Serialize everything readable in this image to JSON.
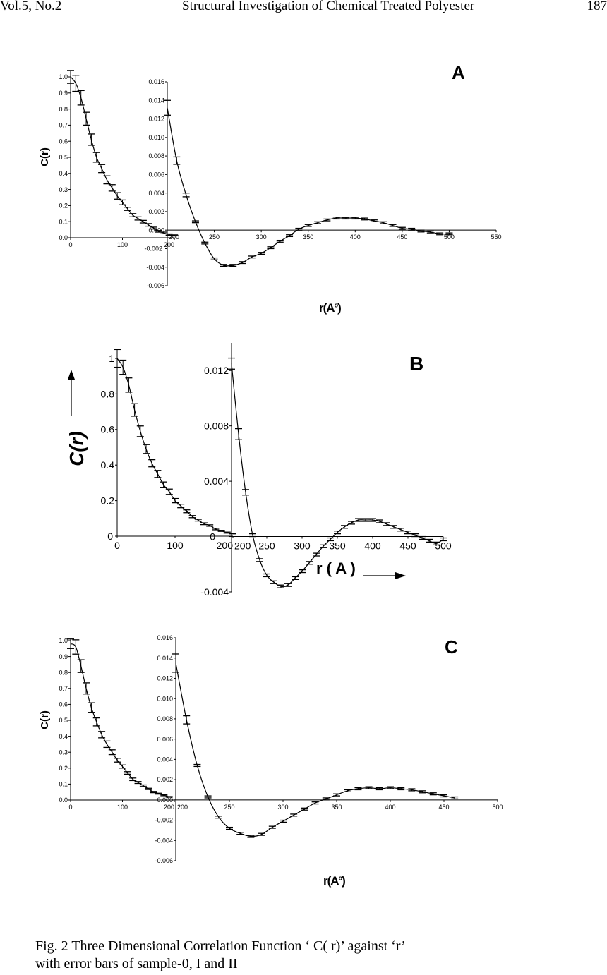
{
  "header": {
    "volume": "Vol.5, No.2",
    "title": "Structural Investigation of Chemical Treated Polyester",
    "page": "187"
  },
  "panels": [
    {
      "label": "A",
      "ylabel": "C(r)",
      "xlabel": "r(A",
      "xlabel_sup": "o",
      "xlabel_close": ")"
    },
    {
      "label": "B",
      "ylabel": "C(r)",
      "xlabel": "r ( A )"
    },
    {
      "label": "C",
      "ylabel": "C(r)",
      "xlabel": "r(A",
      "xlabel_sup": "o",
      "xlabel_close": ")"
    }
  ],
  "caption": {
    "line1": "Fig. 2 Three Dimensional Correlation Function ‘ C( r)’ against ‘r’",
    "line2": "with error bars of sample-0, I and II"
  },
  "chart_data": [
    {
      "type": "line",
      "panel": "A",
      "part": "main",
      "xlim": [
        0,
        200
      ],
      "ylim": [
        0,
        1
      ],
      "xticks": [
        "0",
        "100",
        "200"
      ],
      "xtick_values": [
        0,
        100,
        200
      ],
      "yticks": [
        "0.0",
        "0.1",
        "0.2",
        "0.3",
        "0.4",
        "0.5",
        "0.6",
        "0.7",
        "0.8",
        "0.9",
        "1.0"
      ],
      "ytick_values": [
        0,
        0.1,
        0.2,
        0.3,
        0.4,
        0.5,
        0.6,
        0.7,
        0.8,
        0.9,
        1.0
      ],
      "x": [
        0,
        10,
        20,
        30,
        40,
        50,
        60,
        70,
        80,
        90,
        100,
        110,
        120,
        130,
        140,
        150,
        160,
        170,
        180,
        190,
        200
      ],
      "y": [
        1.0,
        0.96,
        0.87,
        0.74,
        0.61,
        0.5,
        0.43,
        0.36,
        0.31,
        0.26,
        0.22,
        0.18,
        0.14,
        0.12,
        0.1,
        0.08,
        0.06,
        0.04,
        0.03,
        0.02,
        0.015
      ],
      "err": [
        0.04,
        0.05,
        0.045,
        0.04,
        0.035,
        0.03,
        0.025,
        0.025,
        0.02,
        0.02,
        0.015,
        0.01,
        0.01,
        0.01,
        0.008,
        0.008,
        0.006,
        0.005,
        0.005,
        0.004,
        0.003
      ]
    },
    {
      "type": "line",
      "panel": "A",
      "part": "inset",
      "xlim": [
        200,
        550
      ],
      "ylim": [
        -0.006,
        0.016
      ],
      "xticks": [
        "200",
        "250",
        "300",
        "350",
        "400",
        "450",
        "500",
        "550"
      ],
      "xtick_values": [
        200,
        250,
        300,
        350,
        400,
        450,
        500,
        550
      ],
      "yticks": [
        "0.016",
        "0.014",
        "0.012",
        "0.010",
        "0.008",
        "0.006",
        "0.004",
        "0.002",
        "0.000",
        "-0.002",
        "-0.004",
        "-0.006"
      ],
      "ytick_values": [
        0.016,
        0.014,
        0.012,
        0.01,
        0.008,
        0.006,
        0.004,
        0.002,
        0,
        -0.002,
        -0.004,
        -0.006
      ],
      "x": [
        200,
        210,
        220,
        230,
        240,
        250,
        260,
        270,
        280,
        290,
        300,
        310,
        320,
        330,
        340,
        350,
        360,
        370,
        380,
        390,
        400,
        410,
        420,
        430,
        440,
        450,
        460,
        470,
        480,
        490,
        500
      ],
      "y": [
        0.0132,
        0.0075,
        0.0038,
        0.0009,
        -0.0014,
        -0.0031,
        -0.0038,
        -0.0038,
        -0.0035,
        -0.0029,
        -0.0025,
        -0.0019,
        -0.0012,
        -0.0006,
        0.0001,
        0.0005,
        0.0008,
        0.0011,
        0.0013,
        0.0013,
        0.0013,
        0.0012,
        0.001,
        0.0008,
        0.0005,
        0.0002,
        0.0001,
        -0.0001,
        -0.0002,
        -0.0004,
        -0.0004
      ],
      "err": [
        0.0008,
        0.0004,
        0.0002,
        0.0001,
        0.0001,
        0.0001,
        0.0001,
        0.0001,
        0.0001,
        0.0001,
        0.0001,
        0.0001,
        0.0001,
        0.0001,
        0.0001,
        0.0001,
        0.0001,
        0.0001,
        0.0001,
        0.0001,
        0.0001,
        0.0001,
        0.0001,
        0.0001,
        0.0001,
        0.0001,
        0.0001,
        0.0001,
        0.0001,
        0.0001,
        0.0001
      ]
    },
    {
      "type": "line",
      "panel": "B",
      "part": "main",
      "xlim": [
        0,
        200
      ],
      "ylim": [
        0,
        1
      ],
      "xticks": [
        "0",
        "100",
        "200"
      ],
      "xtick_values": [
        0,
        100,
        200
      ],
      "yticks": [
        "0",
        "0.2",
        "0.4",
        "0.6",
        "0.8",
        "1"
      ],
      "ytick_values": [
        0,
        0.2,
        0.4,
        0.6,
        0.8,
        1
      ],
      "x": [
        0,
        10,
        20,
        30,
        40,
        50,
        60,
        70,
        80,
        90,
        100,
        110,
        120,
        130,
        140,
        150,
        160,
        170,
        180,
        190,
        200
      ],
      "y": [
        1.0,
        0.95,
        0.85,
        0.71,
        0.59,
        0.49,
        0.41,
        0.35,
        0.29,
        0.25,
        0.2,
        0.17,
        0.14,
        0.11,
        0.09,
        0.07,
        0.06,
        0.04,
        0.03,
        0.02,
        0.015
      ],
      "err": [
        0.05,
        0.04,
        0.04,
        0.035,
        0.03,
        0.025,
        0.02,
        0.02,
        0.015,
        0.015,
        0.012,
        0.01,
        0.008,
        0.006,
        0.005,
        0.005,
        0.004,
        0.004,
        0.003,
        0.003,
        0.002
      ]
    },
    {
      "type": "line",
      "panel": "B",
      "part": "inset",
      "xlim": [
        200,
        500
      ],
      "ylim": [
        -0.004,
        0.014
      ],
      "xticks": [
        "200",
        "250",
        "300",
        "350",
        "400",
        "450",
        "500"
      ],
      "xtick_values": [
        200,
        250,
        300,
        350,
        400,
        450,
        500
      ],
      "yticks": [
        "0.012",
        "0.008",
        "0.004",
        "0",
        "-0.004"
      ],
      "ytick_values": [
        0.012,
        0.008,
        0.004,
        0,
        -0.004
      ],
      "x": [
        200,
        210,
        220,
        230,
        240,
        250,
        260,
        270,
        280,
        290,
        300,
        310,
        320,
        330,
        340,
        350,
        360,
        370,
        380,
        390,
        400,
        410,
        420,
        430,
        440,
        450,
        460,
        470,
        480,
        490,
        500
      ],
      "y": [
        0.0125,
        0.0074,
        0.0032,
        0.0001,
        -0.0017,
        -0.0028,
        -0.0033,
        -0.0036,
        -0.0035,
        -0.003,
        -0.0025,
        -0.0019,
        -0.0013,
        -0.0007,
        -0.0002,
        0.0003,
        0.0007,
        0.001,
        0.0012,
        0.0012,
        0.0012,
        0.0011,
        0.0009,
        0.0007,
        0.0005,
        0.0003,
        0.0001,
        -0.0001,
        -0.0003,
        -0.0005,
        -0.0002
      ],
      "err": [
        0.0004,
        0.0004,
        0.0002,
        0.0001,
        0.0001,
        0.0001,
        0.0001,
        0.0001,
        0.0001,
        0.0001,
        0.0001,
        0.0001,
        0.0001,
        0.0001,
        0.0001,
        0.0001,
        0.0001,
        0.0001,
        0.0001,
        0.0001,
        0.0001,
        0.0001,
        0.0001,
        0.0001,
        0.0001,
        0.0001,
        0.0001,
        0.0001,
        0.0001,
        0.0001,
        0.0001
      ]
    },
    {
      "type": "line",
      "panel": "C",
      "part": "main",
      "xlim": [
        0,
        200
      ],
      "ylim": [
        0,
        1
      ],
      "xticks": [
        "0",
        "100",
        "200"
      ],
      "xtick_values": [
        0,
        100,
        200
      ],
      "yticks": [
        "0.0",
        "0.1",
        "0.2",
        "0.3",
        "0.4",
        "0.5",
        "0.6",
        "0.7",
        "0.8",
        "0.9",
        "1.0"
      ],
      "ytick_values": [
        0,
        0.1,
        0.2,
        0.3,
        0.4,
        0.5,
        0.6,
        0.7,
        0.8,
        0.9,
        1.0
      ],
      "x": [
        0,
        10,
        20,
        30,
        40,
        50,
        60,
        70,
        80,
        90,
        100,
        110,
        120,
        130,
        140,
        150,
        160,
        170,
        180,
        190
      ],
      "y": [
        0.98,
        0.96,
        0.84,
        0.7,
        0.58,
        0.49,
        0.41,
        0.35,
        0.3,
        0.25,
        0.21,
        0.17,
        0.13,
        0.11,
        0.09,
        0.07,
        0.05,
        0.04,
        0.03,
        0.02
      ],
      "err": [
        0.03,
        0.045,
        0.04,
        0.035,
        0.03,
        0.025,
        0.02,
        0.02,
        0.015,
        0.012,
        0.01,
        0.008,
        0.008,
        0.006,
        0.005,
        0.004,
        0.004,
        0.003,
        0.003,
        0.002
      ]
    },
    {
      "type": "line",
      "panel": "C",
      "part": "inset",
      "xlim": [
        200,
        500
      ],
      "ylim": [
        -0.006,
        0.016
      ],
      "xticks": [
        "200",
        "250",
        "300",
        "350",
        "400",
        "450",
        "500"
      ],
      "xtick_values": [
        200,
        250,
        300,
        350,
        400,
        450,
        500
      ],
      "yticks": [
        "0.016",
        "0.014",
        "0.012",
        "0.010",
        "0.008",
        "0.006",
        "0.004",
        "0.002",
        "0.000",
        "-0.002",
        "-0.004",
        "-0.006"
      ],
      "ytick_values": [
        0.016,
        0.014,
        0.012,
        0.01,
        0.008,
        0.006,
        0.004,
        0.002,
        0,
        -0.002,
        -0.004,
        -0.006
      ],
      "x": [
        200,
        210,
        220,
        230,
        240,
        250,
        260,
        270,
        280,
        290,
        300,
        310,
        320,
        330,
        340,
        350,
        360,
        370,
        380,
        390,
        400,
        410,
        420,
        430,
        440,
        450,
        460
      ],
      "y": [
        0.0135,
        0.0079,
        0.0034,
        0.0003,
        -0.0017,
        -0.0028,
        -0.0033,
        -0.0036,
        -0.0034,
        -0.0027,
        -0.0021,
        -0.0015,
        -0.0009,
        -0.0003,
        0.0001,
        0.0005,
        0.0009,
        0.0011,
        0.0012,
        0.0011,
        0.0012,
        0.0011,
        0.001,
        0.0008,
        0.0006,
        0.0004,
        0.0002
      ],
      "err": [
        0.0009,
        0.0004,
        0.0001,
        0.0001,
        0.0001,
        0.0001,
        0.0001,
        0.0001,
        0.0001,
        0.0001,
        0.0001,
        0.0001,
        0.0001,
        0.0001,
        0.0001,
        0.0001,
        0.0001,
        0.0001,
        0.0001,
        0.0001,
        0.0001,
        0.0001,
        0.0001,
        0.0001,
        0.0001,
        0.0001,
        0.0001
      ]
    }
  ]
}
